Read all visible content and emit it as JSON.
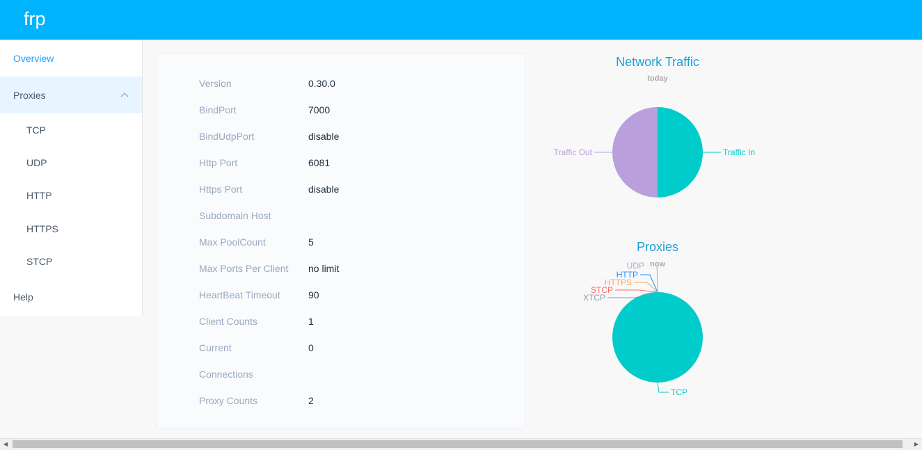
{
  "header": {
    "brand": "frp"
  },
  "sidebar": {
    "overview": "Overview",
    "proxies": "Proxies",
    "proxy_types": [
      "TCP",
      "UDP",
      "HTTP",
      "HTTPS",
      "STCP"
    ],
    "help": "Help"
  },
  "server_info": [
    {
      "label": "Version",
      "value": "0.30.0"
    },
    {
      "label": "BindPort",
      "value": "7000"
    },
    {
      "label": "BindUdpPort",
      "value": "disable"
    },
    {
      "label": "Http Port",
      "value": "6081"
    },
    {
      "label": "Https Port",
      "value": "disable"
    },
    {
      "label": "Subdomain Host",
      "value": ""
    },
    {
      "label": "Max PoolCount",
      "value": "5"
    },
    {
      "label": "Max Ports Per Client",
      "value": "no limit"
    },
    {
      "label": "HeartBeat Timeout",
      "value": "90"
    },
    {
      "label": "Client Counts",
      "value": "1"
    },
    {
      "label": "Current",
      "value": "0"
    },
    {
      "label": "Connections",
      "value": ""
    },
    {
      "label": "Proxy Counts",
      "value": "2"
    }
  ],
  "traffic_chart": {
    "title": "Network Traffic",
    "subtitle": "today",
    "chart_data": {
      "type": "pie",
      "series": [
        {
          "name": "Traffic In",
          "value": 50,
          "color": "#00cccc"
        },
        {
          "name": "Traffic Out",
          "value": 50,
          "color": "#b9a0dc"
        }
      ]
    }
  },
  "proxies_chart": {
    "title": "Proxies",
    "subtitle": "now",
    "chart_data": {
      "type": "pie",
      "series": [
        {
          "name": "TCP",
          "value": 2,
          "color": "#00cccc"
        },
        {
          "name": "UDP",
          "value": 0,
          "color": "#b9a0dc"
        },
        {
          "name": "HTTP",
          "value": 0,
          "color": "#1e90ff"
        },
        {
          "name": "HTTPS",
          "value": 0,
          "color": "#ffa65c"
        },
        {
          "name": "STCP",
          "value": 0,
          "color": "#ff6b6b"
        },
        {
          "name": "XTCP",
          "value": 0,
          "color": "#8a9ab8"
        }
      ]
    }
  },
  "scrollbar": {
    "left_arrow": "◀",
    "right_arrow": "▶"
  }
}
